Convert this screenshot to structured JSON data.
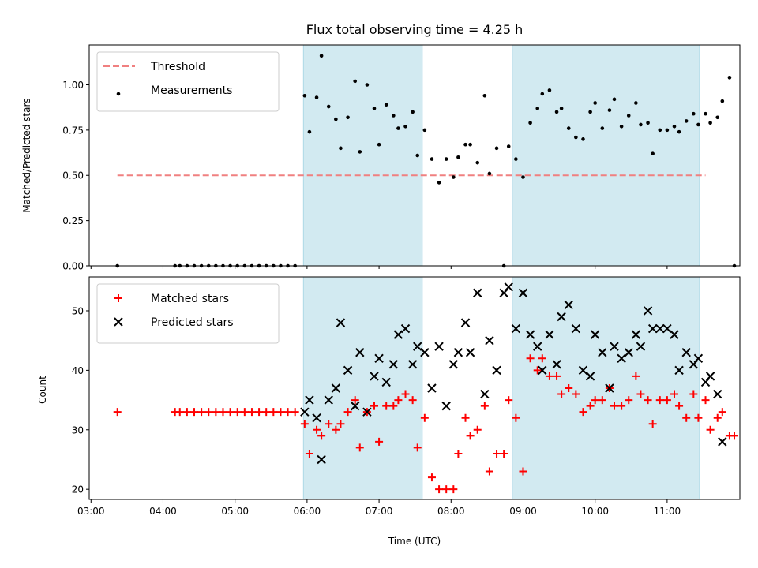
{
  "chart_data": [
    {
      "type": "scatter",
      "title": "Flux total observing time = 4.25 h",
      "ylabel": "Matched/Predicted stars",
      "xlabel": "",
      "xlim": [
        "03:00",
        "12:00"
      ],
      "ylim": [
        0,
        1.22
      ],
      "y_ticks": [
        "0.00",
        "0.25",
        "0.50",
        "0.75",
        "1.00"
      ],
      "x_ticks": [
        "03:00",
        "04:00",
        "05:00",
        "06:00",
        "07:00",
        "08:00",
        "09:00",
        "10:00",
        "11:00"
      ],
      "grid": false,
      "legend_placement": "top-left",
      "shaded_intervals": [
        [
          "05:57",
          "07:36"
        ],
        [
          "08:51",
          "11:27"
        ]
      ],
      "shade_color": "#add8e6",
      "threshold": {
        "name": "Threshold",
        "value": 0.5,
        "x_range": [
          "03:22",
          "11:32"
        ],
        "color": "#f08080",
        "style": "dashed"
      },
      "series": [
        {
          "name": "Measurements",
          "color": "#000000",
          "marker": "dot",
          "points": [
            [
              "03:22",
              0
            ],
            [
              "04:10",
              0
            ],
            [
              "04:14",
              0
            ],
            [
              "04:20",
              0
            ],
            [
              "04:26",
              0
            ],
            [
              "04:32",
              0
            ],
            [
              "04:38",
              0
            ],
            [
              "04:44",
              0
            ],
            [
              "04:50",
              0
            ],
            [
              "04:56",
              0
            ],
            [
              "05:02",
              0
            ],
            [
              "05:08",
              0
            ],
            [
              "05:14",
              0
            ],
            [
              "05:20",
              0
            ],
            [
              "05:26",
              0
            ],
            [
              "05:32",
              0
            ],
            [
              "05:38",
              0
            ],
            [
              "05:44",
              0
            ],
            [
              "05:50",
              0
            ],
            [
              "05:58",
              0.94
            ],
            [
              "06:02",
              0.74
            ],
            [
              "06:08",
              0.93
            ],
            [
              "06:12",
              1.16
            ],
            [
              "06:18",
              0.88
            ],
            [
              "06:24",
              0.81
            ],
            [
              "06:28",
              0.65
            ],
            [
              "06:34",
              0.82
            ],
            [
              "06:40",
              1.02
            ],
            [
              "06:44",
              0.63
            ],
            [
              "06:50",
              1.0
            ],
            [
              "06:56",
              0.87
            ],
            [
              "07:00",
              0.67
            ],
            [
              "07:06",
              0.89
            ],
            [
              "07:12",
              0.83
            ],
            [
              "07:16",
              0.76
            ],
            [
              "07:22",
              0.77
            ],
            [
              "07:28",
              0.85
            ],
            [
              "07:32",
              0.61
            ],
            [
              "07:38",
              0.75
            ],
            [
              "07:44",
              0.59
            ],
            [
              "07:50",
              0.46
            ],
            [
              "07:56",
              0.59
            ],
            [
              "08:02",
              0.49
            ],
            [
              "08:06",
              0.6
            ],
            [
              "08:12",
              0.67
            ],
            [
              "08:16",
              0.67
            ],
            [
              "08:22",
              0.57
            ],
            [
              "08:28",
              0.94
            ],
            [
              "08:32",
              0.51
            ],
            [
              "08:38",
              0.65
            ],
            [
              "08:44",
              0.0
            ],
            [
              "08:48",
              0.66
            ],
            [
              "08:54",
              0.59
            ],
            [
              "09:00",
              0.49
            ],
            [
              "09:06",
              0.79
            ],
            [
              "09:12",
              0.87
            ],
            [
              "09:16",
              0.95
            ],
            [
              "09:22",
              0.97
            ],
            [
              "09:28",
              0.85
            ],
            [
              "09:32",
              0.87
            ],
            [
              "09:38",
              0.76
            ],
            [
              "09:44",
              0.71
            ],
            [
              "09:50",
              0.7
            ],
            [
              "09:56",
              0.85
            ],
            [
              "10:00",
              0.9
            ],
            [
              "10:06",
              0.76
            ],
            [
              "10:12",
              0.86
            ],
            [
              "10:16",
              0.92
            ],
            [
              "10:22",
              0.77
            ],
            [
              "10:28",
              0.83
            ],
            [
              "10:34",
              0.9
            ],
            [
              "10:38",
              0.78
            ],
            [
              "10:44",
              0.79
            ],
            [
              "10:48",
              0.62
            ],
            [
              "10:54",
              0.75
            ],
            [
              "11:00",
              0.75
            ],
            [
              "11:06",
              0.77
            ],
            [
              "11:10",
              0.74
            ],
            [
              "11:16",
              0.8
            ],
            [
              "11:22",
              0.84
            ],
            [
              "11:26",
              0.78
            ],
            [
              "11:32",
              0.84
            ],
            [
              "11:36",
              0.79
            ],
            [
              "11:42",
              0.82
            ],
            [
              "11:46",
              0.91
            ],
            [
              "11:52",
              1.04
            ],
            [
              "11:56",
              0.0
            ]
          ]
        }
      ]
    },
    {
      "type": "scatter",
      "title": "",
      "ylabel": "Count",
      "xlabel": "Time (UTC)",
      "xlim": [
        "03:00",
        "12:00"
      ],
      "ylim": [
        18.3,
        55.7
      ],
      "y_ticks": [
        "20",
        "30",
        "40",
        "50"
      ],
      "x_ticks": [
        "03:00",
        "04:00",
        "05:00",
        "06:00",
        "07:00",
        "08:00",
        "09:00",
        "10:00",
        "11:00"
      ],
      "grid": false,
      "legend_placement": "top-left",
      "shaded_intervals": [
        [
          "05:57",
          "07:36"
        ],
        [
          "08:51",
          "11:27"
        ]
      ],
      "shade_color": "#add8e6",
      "series": [
        {
          "name": "Matched stars",
          "color": "#ff0000",
          "marker": "plus",
          "points": [
            [
              "03:22",
              33
            ],
            [
              "04:10",
              33
            ],
            [
              "04:14",
              33
            ],
            [
              "04:20",
              33
            ],
            [
              "04:26",
              33
            ],
            [
              "04:32",
              33
            ],
            [
              "04:38",
              33
            ],
            [
              "04:44",
              33
            ],
            [
              "04:50",
              33
            ],
            [
              "04:56",
              33
            ],
            [
              "05:02",
              33
            ],
            [
              "05:08",
              33
            ],
            [
              "05:14",
              33
            ],
            [
              "05:20",
              33
            ],
            [
              "05:26",
              33
            ],
            [
              "05:32",
              33
            ],
            [
              "05:38",
              33
            ],
            [
              "05:44",
              33
            ],
            [
              "05:50",
              33
            ],
            [
              "05:58",
              31
            ],
            [
              "06:02",
              26
            ],
            [
              "06:08",
              30
            ],
            [
              "06:12",
              29
            ],
            [
              "06:18",
              31
            ],
            [
              "06:24",
              30
            ],
            [
              "06:28",
              31
            ],
            [
              "06:34",
              33
            ],
            [
              "06:40",
              35
            ],
            [
              "06:44",
              27
            ],
            [
              "06:50",
              33
            ],
            [
              "06:56",
              34
            ],
            [
              "07:00",
              28
            ],
            [
              "07:06",
              34
            ],
            [
              "07:12",
              34
            ],
            [
              "07:16",
              35
            ],
            [
              "07:22",
              36
            ],
            [
              "07:28",
              35
            ],
            [
              "07:32",
              27
            ],
            [
              "07:38",
              32
            ],
            [
              "07:44",
              22
            ],
            [
              "07:50",
              20
            ],
            [
              "07:56",
              20
            ],
            [
              "08:02",
              20
            ],
            [
              "08:06",
              26
            ],
            [
              "08:12",
              32
            ],
            [
              "08:16",
              29
            ],
            [
              "08:22",
              30
            ],
            [
              "08:28",
              34
            ],
            [
              "08:32",
              23
            ],
            [
              "08:38",
              26
            ],
            [
              "08:44",
              26
            ],
            [
              "08:48",
              35
            ],
            [
              "08:54",
              32
            ],
            [
              "09:00",
              23
            ],
            [
              "09:06",
              42
            ],
            [
              "09:12",
              40
            ],
            [
              "09:16",
              42
            ],
            [
              "09:22",
              39
            ],
            [
              "09:28",
              39
            ],
            [
              "09:32",
              36
            ],
            [
              "09:38",
              37
            ],
            [
              "09:44",
              36
            ],
            [
              "09:50",
              33
            ],
            [
              "09:56",
              34
            ],
            [
              "10:00",
              35
            ],
            [
              "10:06",
              35
            ],
            [
              "10:12",
              37
            ],
            [
              "10:16",
              34
            ],
            [
              "10:22",
              34
            ],
            [
              "10:28",
              35
            ],
            [
              "10:34",
              39
            ],
            [
              "10:38",
              36
            ],
            [
              "10:44",
              35
            ],
            [
              "10:48",
              31
            ],
            [
              "10:54",
              35
            ],
            [
              "11:00",
              35
            ],
            [
              "11:06",
              36
            ],
            [
              "11:10",
              34
            ],
            [
              "11:16",
              32
            ],
            [
              "11:22",
              36
            ],
            [
              "11:26",
              32
            ],
            [
              "11:32",
              35
            ],
            [
              "11:36",
              30
            ],
            [
              "11:42",
              32
            ],
            [
              "11:46",
              33
            ],
            [
              "11:52",
              29
            ],
            [
              "11:56",
              29
            ]
          ]
        },
        {
          "name": "Predicted stars",
          "color": "#000000",
          "marker": "x",
          "points": [
            [
              "05:58",
              33
            ],
            [
              "06:02",
              35
            ],
            [
              "06:08",
              32
            ],
            [
              "06:12",
              25
            ],
            [
              "06:18",
              35
            ],
            [
              "06:24",
              37
            ],
            [
              "06:28",
              48
            ],
            [
              "06:34",
              40
            ],
            [
              "06:40",
              34
            ],
            [
              "06:44",
              43
            ],
            [
              "06:50",
              33
            ],
            [
              "06:56",
              39
            ],
            [
              "07:00",
              42
            ],
            [
              "07:06",
              38
            ],
            [
              "07:12",
              41
            ],
            [
              "07:16",
              46
            ],
            [
              "07:22",
              47
            ],
            [
              "07:28",
              41
            ],
            [
              "07:32",
              44
            ],
            [
              "07:38",
              43
            ],
            [
              "07:44",
              37
            ],
            [
              "07:50",
              44
            ],
            [
              "07:56",
              34
            ],
            [
              "08:02",
              41
            ],
            [
              "08:06",
              43
            ],
            [
              "08:12",
              48
            ],
            [
              "08:16",
              43
            ],
            [
              "08:22",
              53
            ],
            [
              "08:28",
              36
            ],
            [
              "08:32",
              45
            ],
            [
              "08:38",
              40
            ],
            [
              "08:44",
              53
            ],
            [
              "08:48",
              54
            ],
            [
              "08:54",
              47
            ],
            [
              "09:00",
              53
            ],
            [
              "09:06",
              46
            ],
            [
              "09:12",
              44
            ],
            [
              "09:16",
              40
            ],
            [
              "09:22",
              46
            ],
            [
              "09:28",
              41
            ],
            [
              "09:32",
              49
            ],
            [
              "09:38",
              51
            ],
            [
              "09:44",
              47
            ],
            [
              "09:50",
              40
            ],
            [
              "09:56",
              39
            ],
            [
              "10:00",
              46
            ],
            [
              "10:06",
              43
            ],
            [
              "10:12",
              37
            ],
            [
              "10:16",
              44
            ],
            [
              "10:22",
              42
            ],
            [
              "10:28",
              43
            ],
            [
              "10:34",
              46
            ],
            [
              "10:38",
              44
            ],
            [
              "10:44",
              50
            ],
            [
              "10:48",
              47
            ],
            [
              "10:54",
              47
            ],
            [
              "11:00",
              47
            ],
            [
              "11:06",
              46
            ],
            [
              "11:10",
              40
            ],
            [
              "11:16",
              43
            ],
            [
              "11:22",
              41
            ],
            [
              "11:26",
              42
            ],
            [
              "11:32",
              38
            ],
            [
              "11:36",
              39
            ],
            [
              "11:42",
              36
            ],
            [
              "11:46",
              28
            ]
          ]
        }
      ]
    }
  ]
}
